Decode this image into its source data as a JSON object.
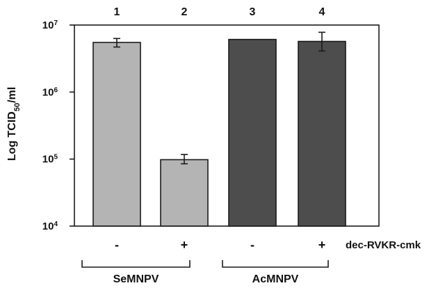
{
  "chart_data": {
    "type": "bar",
    "scale": "log",
    "ylabel_main": "Log TCID",
    "ylabel_sub": "50",
    "ylabel_tail": "/ml",
    "ylim": [
      10000,
      10000000
    ],
    "yticks": [
      {
        "value": 10000,
        "base": "10",
        "exp": "4"
      },
      {
        "value": 100000,
        "base": "10",
        "exp": "5"
      },
      {
        "value": 1000000,
        "base": "10",
        "exp": "6"
      },
      {
        "value": 10000000,
        "base": "10",
        "exp": "7"
      }
    ],
    "grid": false,
    "bars": [
      {
        "lane": "1",
        "treatment": "-",
        "group": "SeMNPV",
        "value": 5500000,
        "err_low": 4700000,
        "err_high": 6300000,
        "color": "#b4b4b4"
      },
      {
        "lane": "2",
        "treatment": "+",
        "group": "SeMNPV",
        "value": 98000,
        "err_low": 85000,
        "err_high": 117000,
        "color": "#b4b4b4"
      },
      {
        "lane": "3",
        "treatment": "-",
        "group": "AcMNPV",
        "value": 6100000,
        "err_low": null,
        "err_high": null,
        "color": "#4d4d4d"
      },
      {
        "lane": "4",
        "treatment": "+",
        "group": "AcMNPV",
        "value": 5700000,
        "err_low": 4100000,
        "err_high": 7800000,
        "color": "#4d4d4d"
      }
    ],
    "treatment_label": "dec-RVKR-cmk",
    "groups": [
      "SeMNPV",
      "AcMNPV"
    ]
  }
}
